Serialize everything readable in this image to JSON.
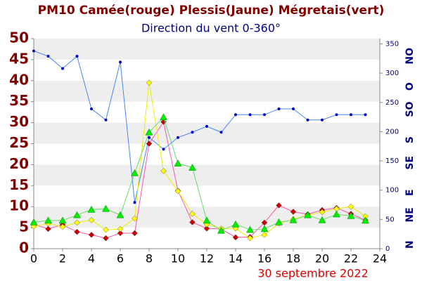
{
  "chart_data": {
    "type": "line",
    "title": "PM10 Camée(rouge) Plessis(Jaune) Mégretais(vert)",
    "subtitle": "Direction du vent 0-360°",
    "date": "30 septembre 2022",
    "x": [
      0,
      1,
      2,
      3,
      4,
      5,
      6,
      7,
      8,
      9,
      10,
      11,
      12,
      13,
      14,
      15,
      16,
      17,
      18,
      19,
      20,
      21,
      22,
      23
    ],
    "xlim": [
      0,
      24
    ],
    "xticks": [
      0,
      2,
      4,
      6,
      8,
      10,
      12,
      14,
      16,
      18,
      20,
      22,
      24
    ],
    "ylim": [
      0,
      50
    ],
    "yticks": [
      0,
      5,
      10,
      15,
      20,
      25,
      30,
      35,
      40,
      45,
      50
    ],
    "y2lim": [
      0,
      359
    ],
    "y2ticks": [
      0,
      50,
      100,
      150,
      200,
      250,
      300,
      350
    ],
    "direction_ticks": [
      {
        "value": 0,
        "label": "N"
      },
      {
        "value": 45,
        "label": "NE"
      },
      {
        "value": 90,
        "label": "E"
      },
      {
        "value": 135,
        "label": "SE"
      },
      {
        "value": 180,
        "label": "S"
      },
      {
        "value": 225,
        "label": "SO"
      },
      {
        "value": 270,
        "label": "O"
      },
      {
        "value": 315,
        "label": "NO"
      }
    ],
    "series": [
      {
        "color": "#4488ee",
        "marker_color": "#0000cc",
        "marker": "circle",
        "axis": "y2",
        "values": [
          338,
          329,
          308,
          329,
          239,
          220,
          319,
          79,
          190,
          170,
          190,
          199,
          209,
          199,
          229,
          229,
          229,
          239,
          239,
          220,
          220,
          229,
          229,
          229
        ]
      },
      {
        "color": "#ff55aa",
        "marker_color": "#cc0000",
        "marker": "diamond",
        "values": [
          5.8,
          4.7,
          5.7,
          4.0,
          3.3,
          2.5,
          3.7,
          3.7,
          25.0,
          30.2,
          13.8,
          6.3,
          4.8,
          4.7,
          2.7,
          2.8,
          6.2,
          10.3,
          8.8,
          8.2,
          9.2,
          9.7,
          8.3,
          6.8
        ]
      },
      {
        "color": "#eeee00",
        "marker_color": "#ffff00",
        "marker": "diamond",
        "values": [
          5.3,
          6.0,
          5.2,
          6.2,
          6.8,
          4.5,
          4.7,
          7.2,
          39.5,
          18.5,
          13.7,
          8.3,
          5.8,
          4.8,
          4.8,
          2.5,
          3.3,
          6.0,
          7.0,
          8.0,
          8.7,
          9.5,
          10.0,
          7.7
        ]
      },
      {
        "color": "#66dd66",
        "marker_color": "#00ee00",
        "marker": "triangle",
        "values": [
          6.3,
          6.7,
          6.7,
          8.0,
          9.3,
          9.5,
          8.0,
          18.0,
          27.7,
          31.3,
          20.3,
          19.3,
          6.7,
          4.3,
          5.8,
          4.5,
          4.7,
          6.3,
          6.8,
          8.0,
          6.8,
          8.2,
          7.8,
          6.7
        ]
      }
    ]
  }
}
